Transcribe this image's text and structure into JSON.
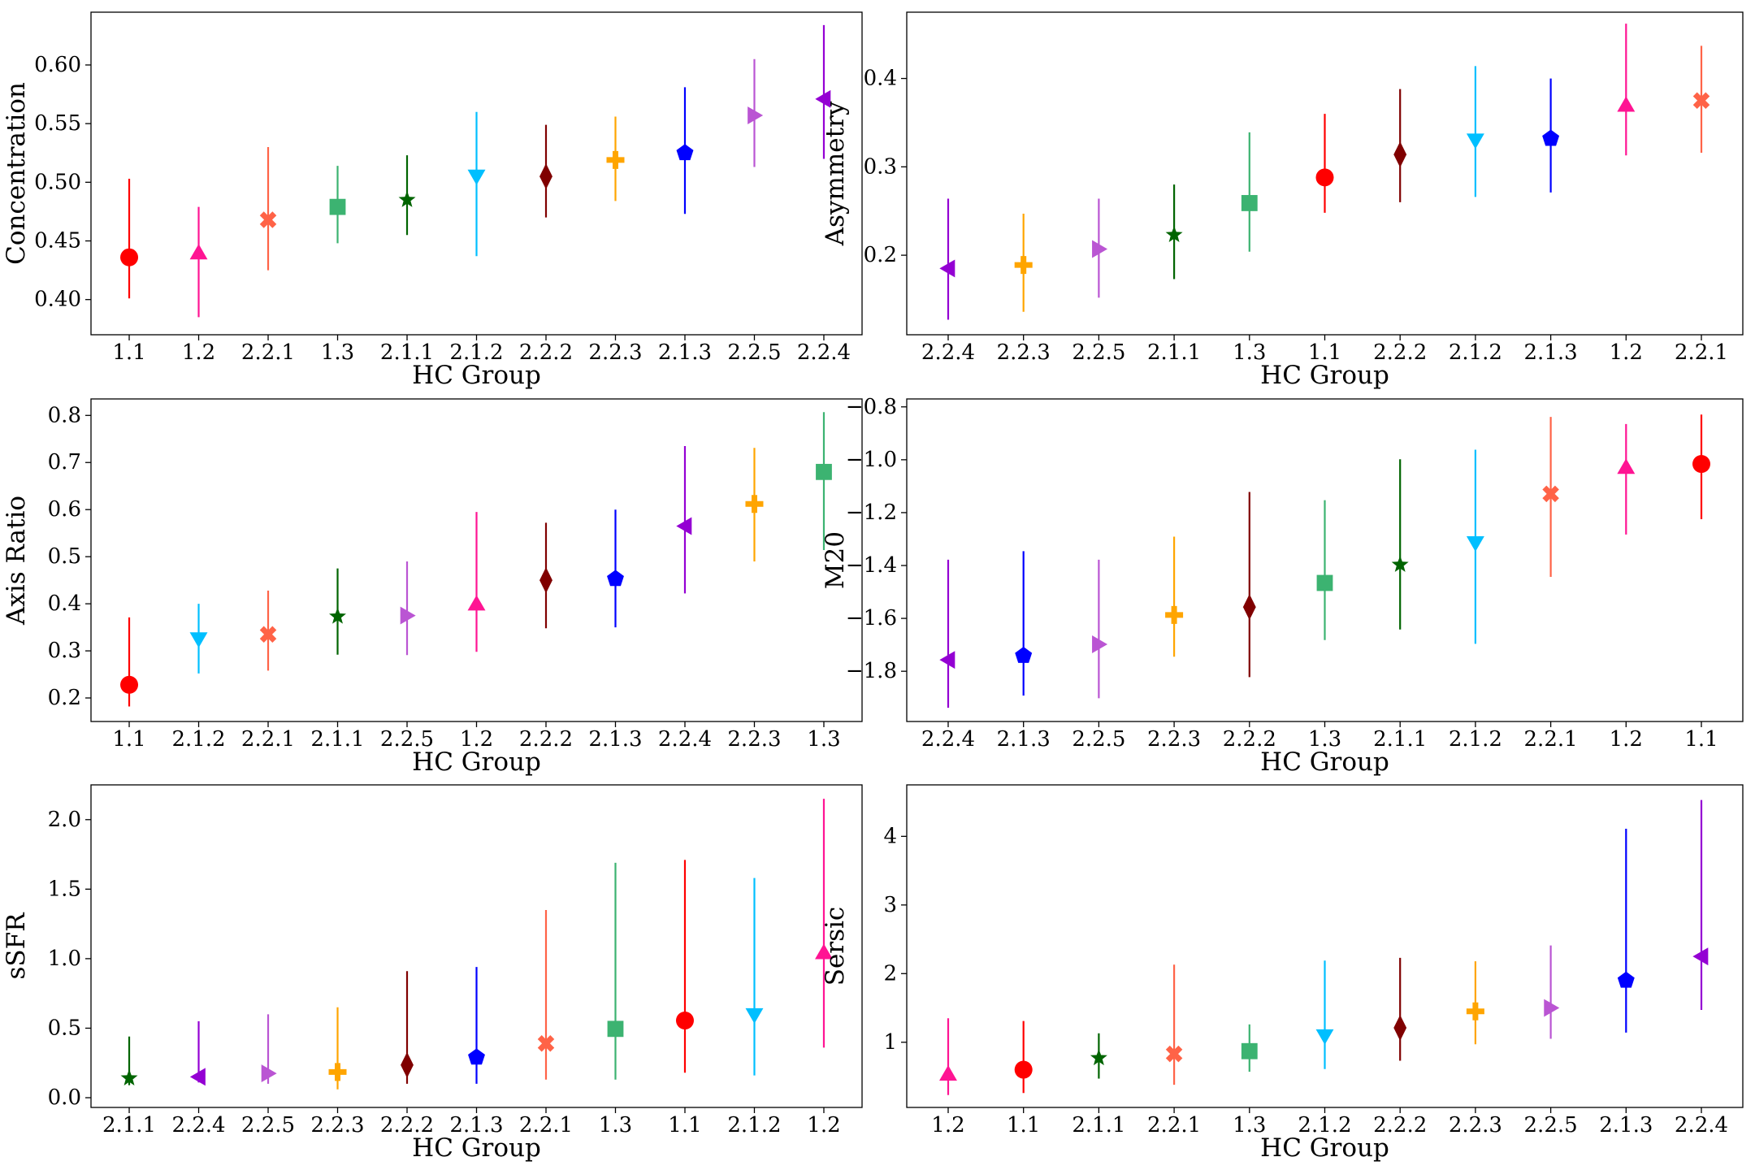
{
  "chart_data": [
    {
      "type": "scatter",
      "xlabel": "HC Group",
      "ylabel": "Concentration",
      "ylim": [
        0.37,
        0.645
      ],
      "yticks": [
        0.4,
        0.45,
        0.5,
        0.55,
        0.6
      ],
      "ytick_labels": [
        "0.40",
        "0.45",
        "0.50",
        "0.55",
        "0.60"
      ],
      "categories": [
        "1.1",
        "1.2",
        "2.2.1",
        "1.3",
        "2.1.1",
        "2.1.2",
        "2.2.2",
        "2.2.3",
        "2.1.3",
        "2.2.5",
        "2.2.4"
      ],
      "values": [
        0.436,
        0.44,
        0.468,
        0.479,
        0.485,
        0.505,
        0.505,
        0.519,
        0.525,
        0.557,
        0.571
      ],
      "err_low": [
        0.401,
        0.385,
        0.425,
        0.448,
        0.455,
        0.437,
        0.47,
        0.484,
        0.473,
        0.513,
        0.52
      ],
      "err_high": [
        0.503,
        0.479,
        0.53,
        0.514,
        0.523,
        0.56,
        0.549,
        0.556,
        0.581,
        0.605,
        0.634
      ],
      "grid": false
    },
    {
      "type": "scatter",
      "xlabel": "HC Group",
      "ylabel": "Asymmetry",
      "ylim": [
        0.11,
        0.475
      ],
      "yticks": [
        0.2,
        0.3,
        0.4
      ],
      "ytick_labels": [
        "0.2",
        "0.3",
        "0.4"
      ],
      "categories": [
        "2.2.4",
        "2.2.3",
        "2.2.5",
        "2.1.1",
        "1.3",
        "1.1",
        "2.2.2",
        "2.1.2",
        "2.1.3",
        "1.2",
        "2.2.1"
      ],
      "values": [
        0.185,
        0.189,
        0.207,
        0.223,
        0.259,
        0.288,
        0.314,
        0.33,
        0.332,
        0.37,
        0.375
      ],
      "err_low": [
        0.127,
        0.136,
        0.152,
        0.173,
        0.204,
        0.248,
        0.26,
        0.266,
        0.271,
        0.313,
        0.316
      ],
      "err_high": [
        0.264,
        0.247,
        0.264,
        0.28,
        0.339,
        0.36,
        0.388,
        0.414,
        0.4,
        0.462,
        0.437
      ],
      "grid": false
    },
    {
      "type": "scatter",
      "xlabel": "HC Group",
      "ylabel": "Axis Ratio",
      "ylim": [
        0.15,
        0.835
      ],
      "yticks": [
        0.2,
        0.3,
        0.4,
        0.5,
        0.6,
        0.7,
        0.8
      ],
      "ytick_labels": [
        "0.2",
        "0.3",
        "0.4",
        "0.5",
        "0.6",
        "0.7",
        "0.8"
      ],
      "categories": [
        "1.1",
        "2.1.2",
        "2.2.1",
        "2.1.1",
        "2.2.5",
        "1.2",
        "2.2.2",
        "2.1.3",
        "2.2.4",
        "2.2.3",
        "1.3"
      ],
      "values": [
        0.228,
        0.325,
        0.335,
        0.373,
        0.375,
        0.4,
        0.45,
        0.453,
        0.565,
        0.612,
        0.68
      ],
      "err_low": [
        0.182,
        0.252,
        0.258,
        0.292,
        0.291,
        0.298,
        0.348,
        0.35,
        0.422,
        0.49,
        0.514
      ],
      "err_high": [
        0.371,
        0.4,
        0.428,
        0.475,
        0.49,
        0.595,
        0.572,
        0.6,
        0.735,
        0.731,
        0.807
      ],
      "grid": false
    },
    {
      "type": "scatter",
      "xlabel": "HC Group",
      "ylabel": "M20",
      "ylim": [
        -1.99,
        -0.77
      ],
      "yticks": [
        -1.8,
        -1.6,
        -1.4,
        -1.2,
        -1.0,
        -0.8
      ],
      "ytick_labels": [
        "−1.8",
        "−1.6",
        "−1.4",
        "−1.2",
        "−1.0",
        "−0.8"
      ],
      "categories": [
        "2.2.4",
        "2.1.3",
        "2.2.5",
        "2.2.3",
        "2.2.2",
        "1.3",
        "2.1.1",
        "2.1.2",
        "2.2.1",
        "1.2",
        "1.1"
      ],
      "values": [
        -1.757,
        -1.741,
        -1.698,
        -1.587,
        -1.557,
        -1.466,
        -1.397,
        -1.315,
        -1.129,
        -1.028,
        -1.016
      ],
      "err_low": [
        -1.938,
        -1.892,
        -1.902,
        -1.745,
        -1.822,
        -1.682,
        -1.642,
        -1.696,
        -1.443,
        -1.283,
        -1.225
      ],
      "err_high": [
        -1.378,
        -1.346,
        -1.378,
        -1.291,
        -1.122,
        -1.153,
        -0.998,
        -0.962,
        -0.838,
        -0.865,
        -0.829
      ],
      "grid": false
    },
    {
      "type": "scatter",
      "xlabel": "HC Group",
      "ylabel": "sSFR",
      "ylim": [
        -0.07,
        2.25
      ],
      "yticks": [
        0.0,
        0.5,
        1.0,
        1.5,
        2.0
      ],
      "ytick_labels": [
        "0.0",
        "0.5",
        "1.0",
        "1.5",
        "2.0"
      ],
      "categories": [
        "2.1.1",
        "2.2.4",
        "2.2.5",
        "2.2.3",
        "2.2.2",
        "2.1.3",
        "2.2.1",
        "1.3",
        "1.1",
        "2.1.2",
        "1.2"
      ],
      "values": [
        0.14,
        0.15,
        0.175,
        0.185,
        0.235,
        0.29,
        0.39,
        0.495,
        0.555,
        0.595,
        1.045
      ],
      "err_low": [
        0.09,
        0.11,
        0.1,
        0.06,
        0.1,
        0.1,
        0.13,
        0.13,
        0.18,
        0.16,
        0.36
      ],
      "err_high": [
        0.44,
        0.55,
        0.6,
        0.65,
        0.91,
        0.94,
        1.35,
        1.69,
        1.71,
        1.58,
        2.15
      ],
      "grid": false
    },
    {
      "type": "scatter",
      "xlabel": "HC Group",
      "ylabel": "Sersic",
      "ylim": [
        0.05,
        4.75
      ],
      "yticks": [
        1,
        2,
        3,
        4
      ],
      "ytick_labels": [
        "1",
        "2",
        "3",
        "4"
      ],
      "categories": [
        "1.2",
        "1.1",
        "2.1.1",
        "2.2.1",
        "1.3",
        "2.1.2",
        "2.2.2",
        "2.2.3",
        "2.2.5",
        "2.1.3",
        "2.2.4"
      ],
      "values": [
        0.54,
        0.6,
        0.77,
        0.83,
        0.87,
        1.09,
        1.21,
        1.45,
        1.5,
        1.9,
        2.25
      ],
      "err_low": [
        0.23,
        0.26,
        0.47,
        0.38,
        0.57,
        0.61,
        0.73,
        0.97,
        1.05,
        1.14,
        1.47
      ],
      "err_high": [
        1.35,
        1.31,
        1.13,
        2.13,
        1.26,
        2.19,
        2.23,
        2.18,
        2.41,
        4.11,
        4.53
      ],
      "grid": false
    }
  ],
  "group_styles": {
    "1.1": {
      "color": "#ff0000",
      "marker": "circle"
    },
    "1.2": {
      "color": "#ff1493",
      "marker": "triangle-up"
    },
    "1.3": {
      "color": "#3cb371",
      "marker": "square"
    },
    "2.1.1": {
      "color": "#006400",
      "marker": "star"
    },
    "2.1.2": {
      "color": "#00bfff",
      "marker": "triangle-down"
    },
    "2.1.3": {
      "color": "#0000ff",
      "marker": "pentagon"
    },
    "2.2.1": {
      "color": "#ff6347",
      "marker": "x-cross"
    },
    "2.2.2": {
      "color": "#800000",
      "marker": "thin-diamond"
    },
    "2.2.3": {
      "color": "#ffa500",
      "marker": "plus"
    },
    "2.2.4": {
      "color": "#9400d3",
      "marker": "triangle-left"
    },
    "2.2.5": {
      "color": "#ba55d3",
      "marker": "triangle-right"
    }
  }
}
